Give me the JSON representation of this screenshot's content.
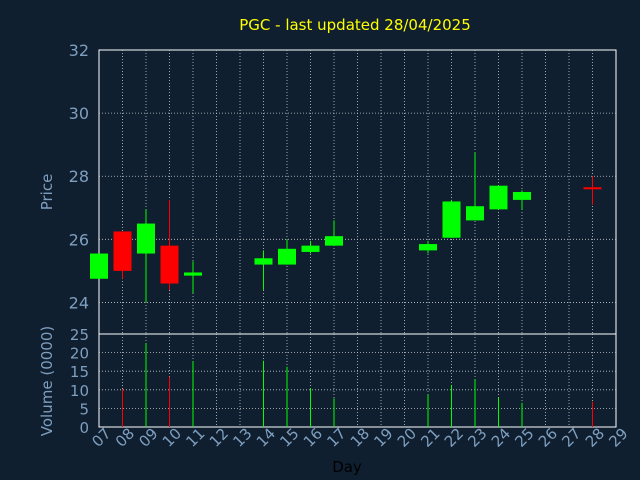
{
  "chart_data": [
    {
      "type": "candlestick",
      "title": "PGC - last updated 28/04/2025",
      "ylabel": "Price",
      "ylim": [
        23,
        32
      ],
      "yticks": [
        24,
        26,
        28,
        30,
        32
      ],
      "grid": true,
      "up_color": "#00ff00",
      "down_color": "#ff0000",
      "candles": [
        {
          "day": "07",
          "open": 24.75,
          "high": 25.55,
          "low": 24.75,
          "close": 25.55
        },
        {
          "day": "08",
          "open": 26.25,
          "high": 26.25,
          "low": 24.75,
          "close": 25.0
        },
        {
          "day": "09",
          "open": 25.55,
          "high": 26.95,
          "low": 24.0,
          "close": 26.5
        },
        {
          "day": "10",
          "open": 25.8,
          "high": 27.25,
          "low": 24.4,
          "close": 24.6
        },
        {
          "day": "11",
          "open": 24.85,
          "high": 25.3,
          "low": 24.3,
          "close": 24.95
        },
        {
          "day": "14",
          "open": 25.2,
          "high": 25.65,
          "low": 24.4,
          "close": 25.4
        },
        {
          "day": "15",
          "open": 25.2,
          "high": 26.0,
          "low": 25.2,
          "close": 25.7
        },
        {
          "day": "16",
          "open": 25.6,
          "high": 25.95,
          "low": 25.55,
          "close": 25.8
        },
        {
          "day": "17",
          "open": 25.8,
          "high": 26.6,
          "low": 25.8,
          "close": 26.1
        },
        {
          "day": "21",
          "open": 25.65,
          "high": 25.95,
          "low": 25.55,
          "close": 25.85
        },
        {
          "day": "22",
          "open": 26.05,
          "high": 27.25,
          "low": 26.05,
          "close": 27.2
        },
        {
          "day": "23",
          "open": 26.6,
          "high": 28.75,
          "low": 26.6,
          "close": 27.05
        },
        {
          "day": "24",
          "open": 26.95,
          "high": 27.7,
          "low": 26.95,
          "close": 27.7
        },
        {
          "day": "25",
          "open": 27.25,
          "high": 27.55,
          "low": 26.95,
          "close": 27.5
        },
        {
          "day": "28",
          "open": 27.65,
          "high": 28.0,
          "low": 27.1,
          "close": 27.6
        }
      ]
    },
    {
      "type": "bar",
      "ylabel": "Volume (0000)",
      "xlabel": "Day",
      "ylim": [
        0,
        25
      ],
      "yticks": [
        0,
        5,
        10,
        15,
        20,
        25
      ],
      "x_tick_labels": [
        "07",
        "08",
        "09",
        "10",
        "11",
        "12",
        "13",
        "14",
        "15",
        "16",
        "17",
        "18",
        "19",
        "20",
        "21",
        "22",
        "23",
        "24",
        "25",
        "26",
        "27",
        "28",
        "29"
      ],
      "grid": true,
      "bars": [
        {
          "day": "08",
          "value": 10.2,
          "color": "#ff0000"
        },
        {
          "day": "09",
          "value": 22.5,
          "color": "#00ff00"
        },
        {
          "day": "10",
          "value": 13.5,
          "color": "#ff0000"
        },
        {
          "day": "11",
          "value": 17.7,
          "color": "#00ff00"
        },
        {
          "day": "14",
          "value": 17.8,
          "color": "#00ff00"
        },
        {
          "day": "15",
          "value": 16.2,
          "color": "#00ff00"
        },
        {
          "day": "16",
          "value": 10.5,
          "color": "#00ff00"
        },
        {
          "day": "17",
          "value": 7.7,
          "color": "#00ff00"
        },
        {
          "day": "21",
          "value": 8.8,
          "color": "#00ff00"
        },
        {
          "day": "22",
          "value": 11.3,
          "color": "#00ff00"
        },
        {
          "day": "23",
          "value": 12.8,
          "color": "#00ff00"
        },
        {
          "day": "24",
          "value": 7.8,
          "color": "#00ff00"
        },
        {
          "day": "25",
          "value": 6.5,
          "color": "#00ff00"
        },
        {
          "day": "28",
          "value": 6.8,
          "color": "#ff0000"
        }
      ]
    }
  ]
}
